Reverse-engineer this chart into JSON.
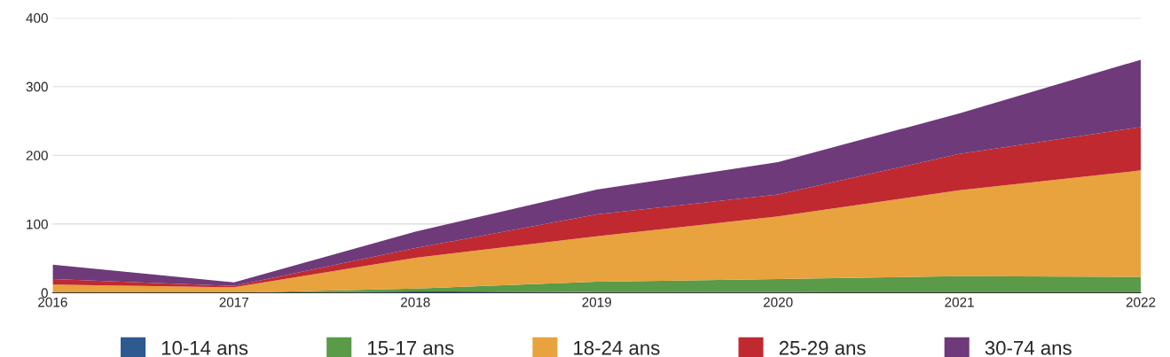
{
  "chart_data": {
    "type": "area",
    "stacked": true,
    "categories": [
      "2016",
      "2017",
      "2018",
      "2019",
      "2020",
      "2021",
      "2022"
    ],
    "series": [
      {
        "name": "10-14 ans",
        "color": "#2e5a8f",
        "values": [
          0,
          0,
          2,
          1,
          1,
          0,
          0
        ]
      },
      {
        "name": "15-17 ans",
        "color": "#5a9a48",
        "values": [
          0,
          0,
          4,
          15,
          19,
          24,
          23
        ]
      },
      {
        "name": "18-24 ans",
        "color": "#e8a23e",
        "values": [
          12,
          8,
          45,
          66,
          91,
          125,
          155
        ]
      },
      {
        "name": "25-29 ans",
        "color": "#c0292f",
        "values": [
          8,
          2,
          14,
          32,
          32,
          53,
          63
        ]
      },
      {
        "name": "30-74 ans",
        "color": "#6e3a7a",
        "values": [
          21,
          5,
          24,
          36,
          47,
          59,
          98
        ]
      }
    ],
    "ylim": [
      0,
      400
    ],
    "yticks": [
      0,
      100,
      200,
      300,
      400
    ],
    "grid": "y",
    "legend": "bottom"
  }
}
